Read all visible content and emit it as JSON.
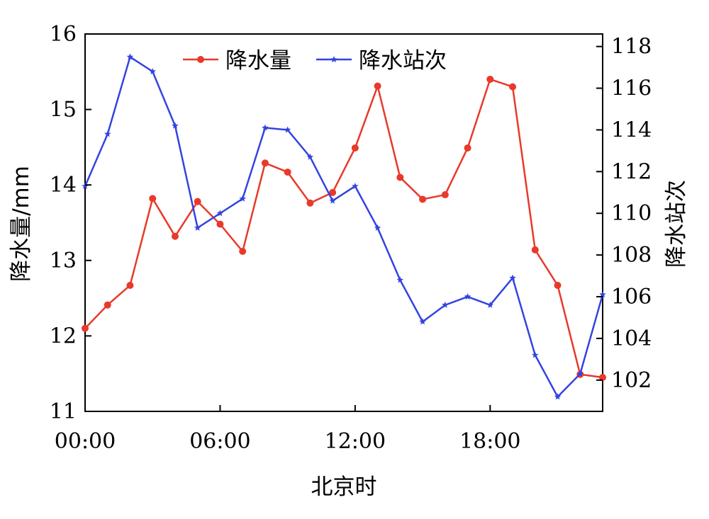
{
  "chart_data": {
    "type": "line",
    "title": "",
    "xlabel": "北京时",
    "ylabel_left": "降水量/mm",
    "ylabel_right": "降水站次",
    "x": [
      "00:00",
      "01:00",
      "02:00",
      "03:00",
      "04:00",
      "05:00",
      "06:00",
      "07:00",
      "08:00",
      "09:00",
      "10:00",
      "11:00",
      "12:00",
      "13:00",
      "14:00",
      "15:00",
      "16:00",
      "17:00",
      "18:00",
      "19:00",
      "20:00",
      "21:00",
      "22:00",
      "23:00"
    ],
    "xlim": [
      "00:00",
      "23:00"
    ],
    "x_ticks": [
      "00:00",
      "06:00",
      "12:00",
      "18:00"
    ],
    "ylim_left": [
      11,
      16
    ],
    "yticks_left": [
      "11",
      "12",
      "13",
      "14",
      "15",
      "16"
    ],
    "ylim_right": [
      100.5,
      118.6
    ],
    "yticks_right": [
      "102",
      "104",
      "106",
      "108",
      "110",
      "112",
      "114",
      "116",
      "118"
    ],
    "legend_position": "top-center",
    "grid": false,
    "series": [
      {
        "name": "降水量",
        "axis": "left",
        "color": "#e8392a",
        "marker": "circle",
        "values": [
          12.1,
          12.41,
          12.67,
          13.82,
          13.32,
          13.78,
          13.48,
          13.12,
          14.29,
          14.17,
          13.76,
          13.9,
          14.49,
          15.31,
          14.1,
          13.81,
          13.87,
          14.49,
          15.4,
          15.3,
          13.14,
          12.67,
          11.49,
          11.45
        ]
      },
      {
        "name": "降水站次",
        "axis": "right",
        "color": "#3344e0",
        "marker": "star",
        "values": [
          111.3,
          113.8,
          117.5,
          116.8,
          114.2,
          109.3,
          110.0,
          110.7,
          114.1,
          114.0,
          112.7,
          110.6,
          111.3,
          109.3,
          106.8,
          104.8,
          105.6,
          106.0,
          105.6,
          106.9,
          103.2,
          101.2,
          102.3,
          106.1
        ]
      }
    ]
  }
}
